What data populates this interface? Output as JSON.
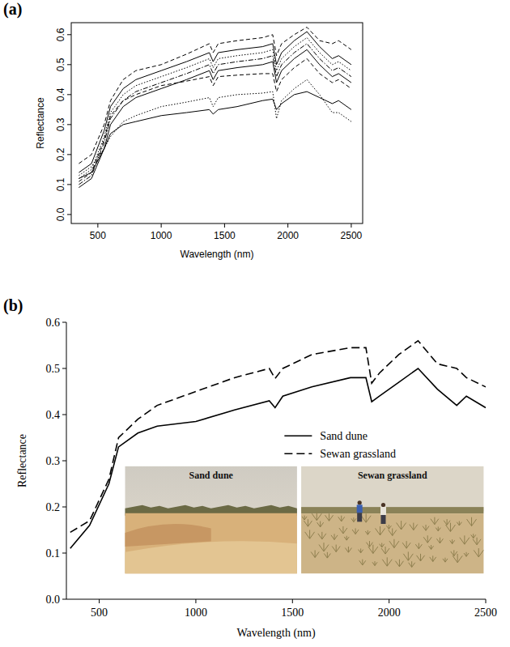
{
  "chart_data": [
    {
      "type": "line",
      "title": "(a)",
      "x_label": "Wavelength (nm)",
      "y_label": "Reflectance",
      "x": [
        350,
        450,
        550,
        600,
        700,
        800,
        1000,
        1200,
        1380,
        1410,
        1450,
        1600,
        1800,
        1880,
        1910,
        1950,
        2050,
        2150,
        2250,
        2350,
        2400,
        2500
      ],
      "xlim": [
        290,
        2590
      ],
      "xticks": [
        500,
        1000,
        1500,
        2000,
        2500
      ],
      "ylim": [
        -0.03,
        0.64
      ],
      "yticks": [
        {
          "value": 0,
          "label": "0.0"
        },
        0.1,
        0.2,
        0.3,
        0.4,
        0.5,
        0.6
      ],
      "series": [
        {
          "color": "#000000",
          "line_style": "dashed",
          "values": [
            0.17,
            0.2,
            0.3,
            0.38,
            0.45,
            0.48,
            0.5,
            0.535,
            0.57,
            0.54,
            0.57,
            0.58,
            0.59,
            0.6,
            0.53,
            0.57,
            0.6,
            0.625,
            0.58,
            0.57,
            0.58,
            0.55
          ]
        },
        {
          "color": "#000000",
          "line_style": "solid",
          "values": [
            0.14,
            0.17,
            0.28,
            0.36,
            0.42,
            0.45,
            0.48,
            0.51,
            0.54,
            0.51,
            0.54,
            0.55,
            0.56,
            0.57,
            0.5,
            0.54,
            0.58,
            0.61,
            0.56,
            0.52,
            0.53,
            0.5
          ]
        },
        {
          "color": "#000000",
          "line_style": "dotted",
          "values": [
            0.12,
            0.15,
            0.26,
            0.34,
            0.4,
            0.43,
            0.46,
            0.49,
            0.52,
            0.49,
            0.52,
            0.53,
            0.54,
            0.55,
            0.48,
            0.52,
            0.56,
            0.59,
            0.54,
            0.5,
            0.51,
            0.48
          ]
        },
        {
          "color": "#000000",
          "line_style": "dotdash",
          "values": [
            0.1,
            0.13,
            0.24,
            0.32,
            0.38,
            0.41,
            0.44,
            0.47,
            0.5,
            0.47,
            0.5,
            0.51,
            0.52,
            0.53,
            0.46,
            0.5,
            0.54,
            0.57,
            0.52,
            0.48,
            0.49,
            0.46
          ]
        },
        {
          "color": "#000000",
          "line_style": "solid",
          "values": [
            0.09,
            0.12,
            0.22,
            0.3,
            0.36,
            0.39,
            0.42,
            0.45,
            0.48,
            0.45,
            0.48,
            0.49,
            0.5,
            0.51,
            0.44,
            0.48,
            0.52,
            0.55,
            0.5,
            0.46,
            0.47,
            0.44
          ]
        },
        {
          "color": "#000000",
          "line_style": "dashed",
          "values": [
            0.11,
            0.14,
            0.25,
            0.33,
            0.38,
            0.4,
            0.43,
            0.445,
            0.46,
            0.43,
            0.46,
            0.465,
            0.47,
            0.47,
            0.41,
            0.45,
            0.49,
            0.52,
            0.47,
            0.44,
            0.45,
            0.42
          ]
        },
        {
          "color": "#000000",
          "line_style": "solid",
          "values": [
            0.12,
            0.14,
            0.22,
            0.27,
            0.3,
            0.31,
            0.33,
            0.34,
            0.35,
            0.335,
            0.35,
            0.36,
            0.38,
            0.385,
            0.35,
            0.37,
            0.4,
            0.41,
            0.39,
            0.37,
            0.38,
            0.35
          ]
        },
        {
          "color": "#000000",
          "line_style": "dotted",
          "values": [
            0.13,
            0.16,
            0.22,
            0.26,
            0.31,
            0.33,
            0.36,
            0.375,
            0.39,
            0.36,
            0.39,
            0.4,
            0.405,
            0.41,
            0.32,
            0.38,
            0.42,
            0.45,
            0.4,
            0.34,
            0.34,
            0.31
          ]
        }
      ]
    },
    {
      "type": "line",
      "title": "(b)",
      "x_label": "Wavelength (nm)",
      "y_label": "Reflectance",
      "x": [
        350,
        450,
        550,
        600,
        700,
        800,
        1000,
        1200,
        1380,
        1410,
        1450,
        1600,
        1800,
        1880,
        1910,
        1950,
        2050,
        2150,
        2250,
        2350,
        2400,
        2500
      ],
      "xlim": [
        330,
        2500
      ],
      "xticks": [
        500,
        1000,
        1500,
        2000,
        2500
      ],
      "ylim": [
        0,
        0.6
      ],
      "yticks": [
        {
          "value": 0,
          "label": "0.0"
        },
        0.1,
        0.2,
        0.3,
        0.4,
        0.5,
        0.6
      ],
      "legend": "right",
      "annotations": [
        "Sand dune",
        "Sewan grassland"
      ],
      "series": [
        {
          "name": "Sand dune",
          "color": "#000000",
          "line_style": "solid",
          "values": [
            0.11,
            0.16,
            0.25,
            0.33,
            0.36,
            0.375,
            0.385,
            0.41,
            0.43,
            0.415,
            0.44,
            0.46,
            0.48,
            0.48,
            0.428,
            0.44,
            0.47,
            0.5,
            0.455,
            0.42,
            0.44,
            0.415
          ]
        },
        {
          "name": "Sewan grassland",
          "color": "#000000",
          "line_style": "dashed",
          "values": [
            0.145,
            0.17,
            0.26,
            0.35,
            0.39,
            0.42,
            0.45,
            0.48,
            0.5,
            0.478,
            0.5,
            0.53,
            0.545,
            0.545,
            0.468,
            0.49,
            0.53,
            0.56,
            0.51,
            0.5,
            0.48,
            0.46
          ]
        }
      ]
    }
  ]
}
